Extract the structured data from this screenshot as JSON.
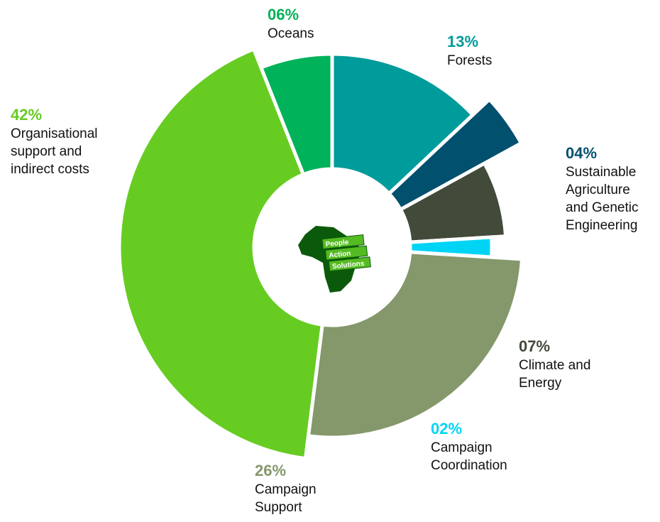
{
  "chart_data": {
    "type": "pie",
    "categories": [
      "Forests",
      "Sustainable Agriculture and Genetic Engineering",
      "Climate and Energy",
      "Campaign Coordination",
      "Campaign Support",
      "Organisational support and indirect costs",
      "Oceans"
    ],
    "values": [
      13,
      4,
      7,
      2,
      26,
      42,
      6
    ],
    "value_labels": [
      "13%",
      "04%",
      "07%",
      "02%",
      "26%",
      "42%",
      "06%"
    ],
    "colors": [
      "#009b9b",
      "#00506e",
      "#424a3a",
      "#00d4f5",
      "#84986b",
      "#66cc22",
      "#00b259"
    ]
  },
  "logo": [
    "People",
    "Action",
    "Solutions"
  ]
}
